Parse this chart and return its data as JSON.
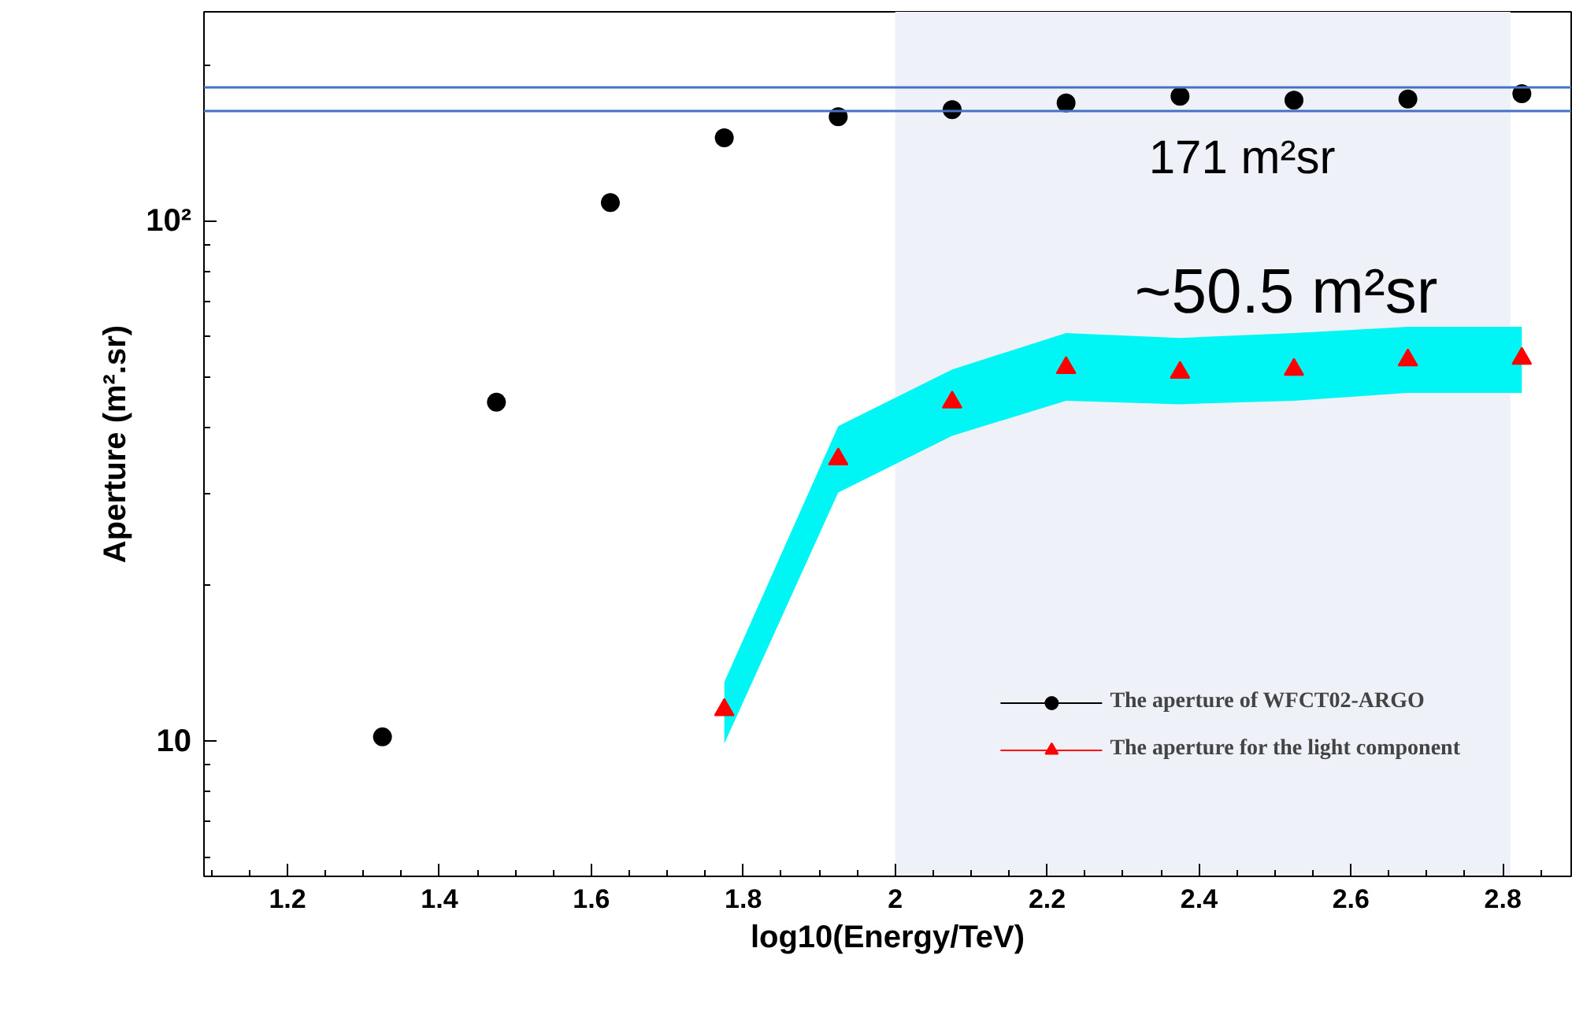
{
  "chart_data": {
    "type": "scatter",
    "xlabel": "log10(Energy/TeV)",
    "ylabel": "Aperture (m².sr)",
    "log": "y",
    "grid": false,
    "legend": "bottom right",
    "x": [
      1.325,
      1.475,
      1.625,
      1.775,
      1.925,
      2.075,
      2.225,
      2.375,
      2.525,
      2.675,
      2.825
    ],
    "series": [
      {
        "name": "The aperture of WFCT02-ARGO",
        "color": "#000000",
        "marker": "circle",
        "values": [
          10.2,
          44.9,
          108.7,
          144.8,
          159,
          164,
          169,
          174,
          171,
          172,
          176
        ]
      },
      {
        "name": "The aperture for the light component",
        "color": "#ff0000",
        "marker": "triangle",
        "x": [
          1.775,
          1.925,
          2.075,
          2.225,
          2.375,
          2.525,
          2.675,
          2.825
        ],
        "values": [
          11.5,
          34.9,
          44.9,
          52.3,
          51.2,
          51.9,
          54.1,
          54.5
        ],
        "lower": [
          9.9,
          30.1,
          38.7,
          45.2,
          44.5,
          45.2,
          46.8,
          46.8
        ],
        "upper": [
          13.0,
          40.4,
          51.9,
          61.0,
          59.7,
          61.0,
          62.7,
          62.7
        ]
      }
    ],
    "xlim": [
      1.09,
      2.89
    ],
    "xticks": [
      1.2,
      1.4,
      1.6,
      1.8,
      2,
      2.2,
      2.4,
      2.6,
      2.8,
      {
        "value": 1.1,
        "label": null
      },
      {
        "value": 1.15,
        "label": null
      },
      {
        "value": 1.25,
        "label": null
      },
      {
        "value": 1.3,
        "label": null
      },
      {
        "value": 1.35,
        "label": null
      },
      {
        "value": 1.45,
        "label": null
      },
      {
        "value": 1.5,
        "label": null
      },
      {
        "value": 1.55,
        "label": null
      },
      {
        "value": 1.65,
        "label": null
      },
      {
        "value": 1.7,
        "label": null
      },
      {
        "value": 1.75,
        "label": null
      },
      {
        "value": 1.85,
        "label": null
      },
      {
        "value": 1.9,
        "label": null
      },
      {
        "value": 1.95,
        "label": null
      },
      {
        "value": 2.05,
        "label": null
      },
      {
        "value": 2.1,
        "label": null
      },
      {
        "value": 2.15,
        "label": null
      },
      {
        "value": 2.25,
        "label": null
      },
      {
        "value": 2.3,
        "label": null
      },
      {
        "value": 2.35,
        "label": null
      },
      {
        "value": 2.45,
        "label": null
      },
      {
        "value": 2.5,
        "label": null
      },
      {
        "value": 2.55,
        "label": null
      },
      {
        "value": 2.65,
        "label": null
      },
      {
        "value": 2.7,
        "label": null
      },
      {
        "value": 2.75,
        "label": null
      },
      {
        "value": 2.85,
        "label": null
      }
    ],
    "ylim": [
      5.5,
      253
    ],
    "yticks": [
      10,
      {
        "value": 100,
        "label": "10²"
      },
      {
        "value": 6,
        "label": null
      },
      {
        "value": 7,
        "label": null
      },
      {
        "value": 8,
        "label": null
      },
      {
        "value": 9,
        "label": null
      },
      {
        "value": 20,
        "label": null
      },
      {
        "value": 30,
        "label": null
      },
      {
        "value": 40,
        "label": null
      },
      {
        "value": 50,
        "label": null
      },
      {
        "value": 60,
        "label": null
      },
      {
        "value": 70,
        "label": null
      },
      {
        "value": 80,
        "label": null
      },
      {
        "value": 90,
        "label": null
      },
      {
        "value": 200,
        "label": null
      }
    ],
    "ref_lines": [
      {
        "axis": "y",
        "value": 181,
        "color": "#4472c4"
      },
      {
        "axis": "y",
        "value": 163,
        "color": "#4472c4"
      }
    ],
    "bands": [
      {
        "axis": "x",
        "from": 2.0,
        "to": 2.81,
        "color": "#eef2f8"
      }
    ],
    "annotations": [
      "171 m²sr",
      "~50.5 m²sr"
    ]
  }
}
